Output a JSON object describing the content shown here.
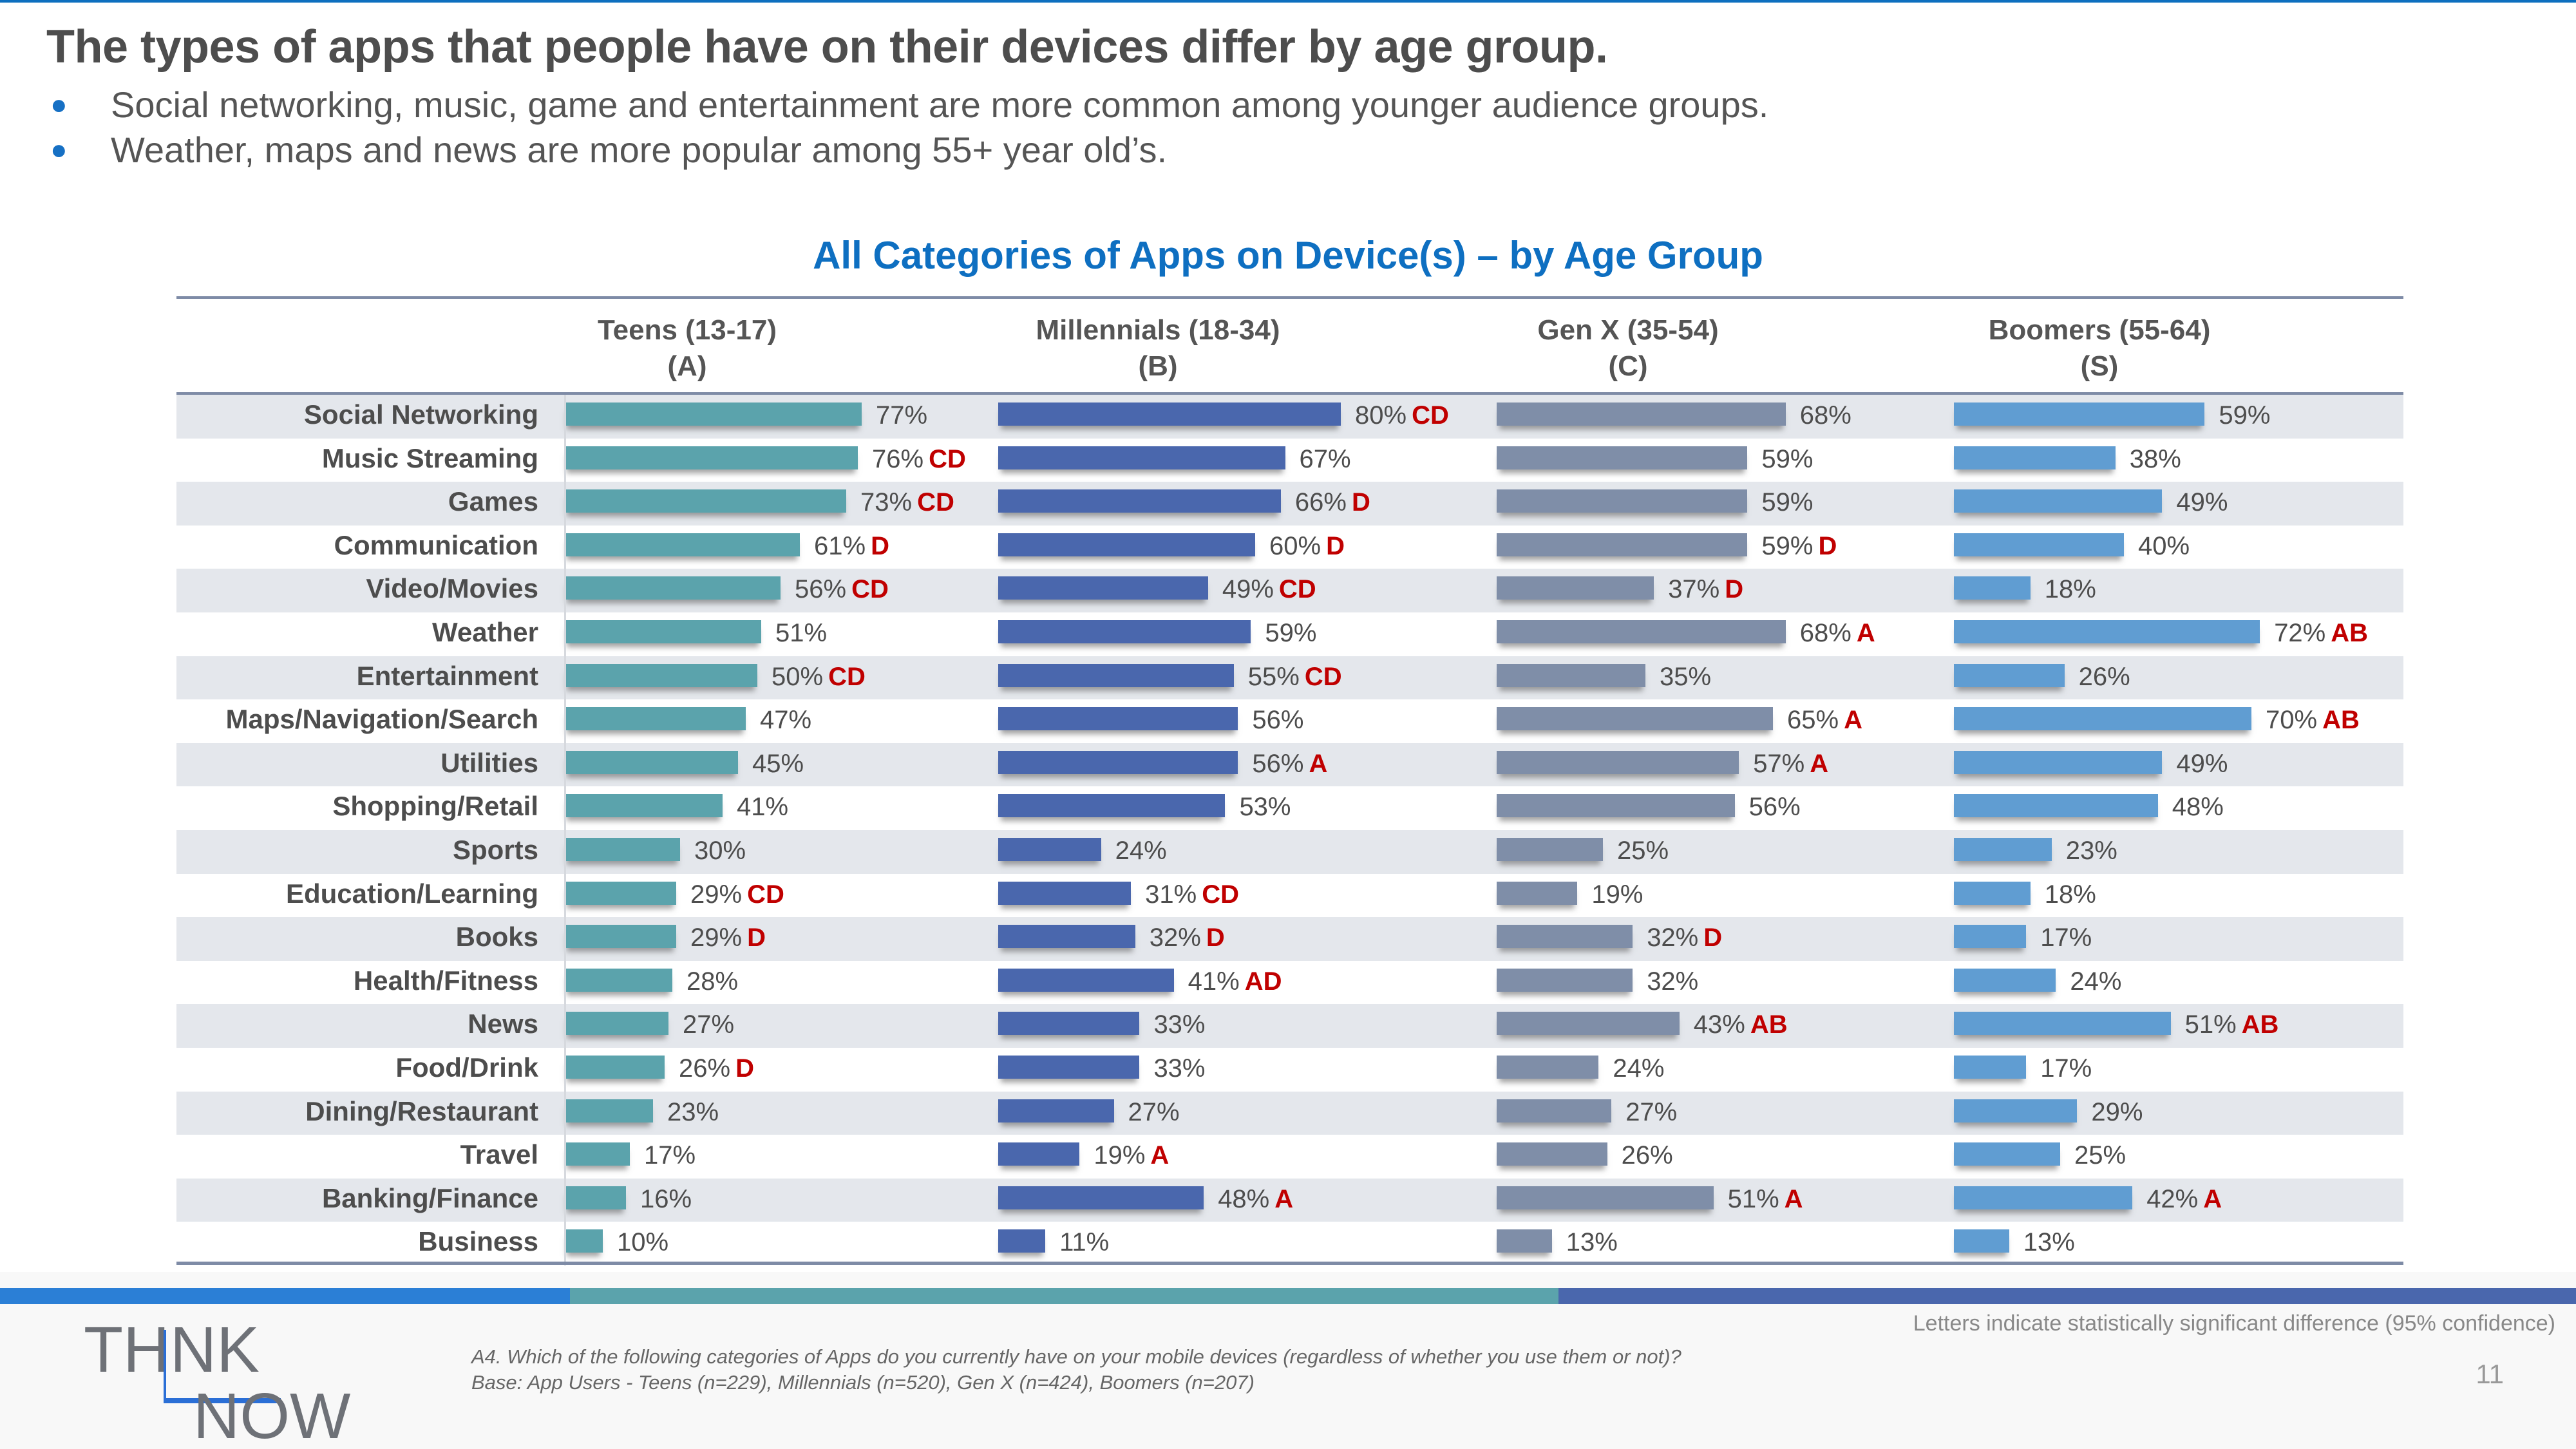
{
  "slide": {
    "title": "The types of apps that people have on their devices differ by age group.",
    "bullets": [
      "Social networking, music, game and entertainment are more common among younger audience groups.",
      "Weather, maps and news are more popular among 55+ year old’s."
    ],
    "footnote_question": "A4. Which of the following categories of Apps do you currently have on your mobile devices (regardless of whether you use them or not)?",
    "footnote_base": "Base: App Users - Teens (n=229), Millennials (n=520), Gen X (n=424), Boomers (n=207)",
    "significance_note": "Letters indicate statistically significant difference (95% confidence)",
    "page_number": "11",
    "logo": {
      "line1_left": "TH",
      "line1_i": "i",
      "line1_right": "NK",
      "line2": "NOW"
    },
    "colors": {
      "accent": "#0e6fc1",
      "significance": "#c00000",
      "stripe": [
        "#2b7fd6",
        "#5ba3ac",
        "#4a67ad"
      ]
    }
  },
  "chart_data": {
    "type": "bar",
    "orientation": "horizontal",
    "title": "All Categories of Apps on Device(s) – by Age Group",
    "unit": "%",
    "xlim": [
      0,
      100
    ],
    "grid": false,
    "categories": [
      "Social Networking",
      "Music Streaming",
      "Games",
      "Communication",
      "Video/Movies",
      "Weather",
      "Entertainment",
      "Maps/Navigation/Search",
      "Utilities",
      "Shopping/Retail",
      "Sports",
      "Education/Learning",
      "Books",
      "Health/Fitness",
      "News",
      "Food/Drink",
      "Dining/Restaurant",
      "Travel",
      "Banking/Finance",
      "Business"
    ],
    "series": [
      {
        "name": "Teens (13-17)",
        "letter": "(A)",
        "color": "#5ba3ac",
        "values": [
          77,
          76,
          73,
          61,
          56,
          51,
          50,
          47,
          45,
          41,
          30,
          29,
          29,
          28,
          27,
          26,
          23,
          17,
          16,
          10
        ],
        "significance": [
          "",
          "CD",
          "CD",
          "D",
          "CD",
          "",
          "CD",
          "",
          "",
          "",
          "",
          "CD",
          "D",
          "",
          "",
          "D",
          "",
          "",
          "",
          ""
        ]
      },
      {
        "name": "Millennials (18-34)",
        "letter": "(B)",
        "color": "#4a67ad",
        "values": [
          80,
          67,
          66,
          60,
          49,
          59,
          55,
          56,
          56,
          53,
          24,
          31,
          32,
          41,
          33,
          33,
          27,
          19,
          48,
          11
        ],
        "significance": [
          "CD",
          "",
          "D",
          "D",
          "CD",
          "",
          "CD",
          "",
          "A",
          "",
          "",
          "CD",
          "D",
          "AD",
          "",
          "",
          "",
          "A",
          "A",
          ""
        ]
      },
      {
        "name": "Gen X (35-54)",
        "letter": "(C)",
        "color": "#7f8ea8",
        "values": [
          68,
          59,
          59,
          59,
          37,
          68,
          35,
          65,
          57,
          56,
          25,
          19,
          32,
          32,
          43,
          24,
          27,
          26,
          51,
          13
        ],
        "significance": [
          "",
          "",
          "",
          "D",
          "D",
          "A",
          "",
          "A",
          "A",
          "",
          "",
          "",
          "D",
          "",
          "AB",
          "",
          "",
          "",
          "A",
          ""
        ]
      },
      {
        "name": "Boomers (55-64)",
        "letter": "(S)",
        "color": "#609dd2",
        "values": [
          59,
          38,
          49,
          40,
          18,
          72,
          26,
          70,
          49,
          48,
          23,
          18,
          17,
          24,
          51,
          17,
          29,
          25,
          42,
          13
        ],
        "significance": [
          "",
          "",
          "",
          "",
          "",
          "AB",
          "",
          "AB",
          "",
          "",
          "",
          "",
          "",
          "",
          "AB",
          "",
          "",
          "",
          "A",
          ""
        ]
      }
    ]
  }
}
